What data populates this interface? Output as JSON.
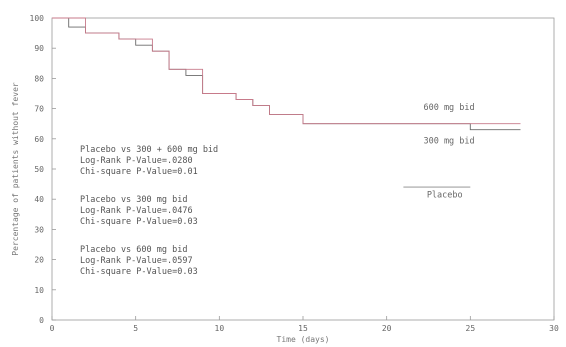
{
  "chart_data": {
    "type": "line",
    "title": "",
    "xlabel": "Time (days)",
    "ylabel": "Percentage of patients without fever",
    "xlim": [
      0,
      30
    ],
    "ylim": [
      0,
      100
    ],
    "x_ticks": [
      "0",
      "5",
      "10",
      "15",
      "20",
      "25",
      "30"
    ],
    "y_ticks": [
      "0",
      "10",
      "20",
      "30",
      "40",
      "50",
      "60",
      "70",
      "80",
      "90",
      "100"
    ],
    "grid": false,
    "series": [
      {
        "name": "600 mg bid",
        "color": "#6a6a6a",
        "x": [
          0,
          1,
          1,
          2,
          2,
          4,
          4,
          5,
          5,
          6,
          6,
          7,
          7,
          8,
          8,
          9,
          9,
          11,
          11,
          12,
          12,
          13,
          13,
          15,
          15,
          25,
          25,
          28
        ],
        "y": [
          100,
          100,
          97,
          97,
          95,
          95,
          93,
          93,
          91,
          91,
          89,
          89,
          83,
          83,
          81,
          81,
          75,
          75,
          73,
          73,
          71,
          71,
          68,
          68,
          65,
          65,
          63,
          63
        ]
      },
      {
        "name": "300 mg bid",
        "color": "#c77a8a",
        "x": [
          0,
          2,
          2,
          4,
          4,
          6,
          6,
          7,
          7,
          9,
          9,
          11,
          11,
          12,
          12,
          13,
          13,
          15,
          15,
          28
        ],
        "y": [
          100,
          100,
          95,
          95,
          93,
          93,
          89,
          89,
          83,
          83,
          75,
          75,
          73,
          73,
          71,
          71,
          68,
          68,
          65,
          65
        ]
      },
      {
        "name": "Placebo",
        "color": "#888888",
        "x": [
          21,
          25
        ],
        "y": [
          44,
          44
        ]
      }
    ],
    "annotations": [
      {
        "lines": [
          "Placebo vs 300 + 600 mg bid",
          "Log-Rank P-Value=.0280",
          "Chi-square P-Value=0.01"
        ]
      },
      {
        "lines": [
          "Placebo vs 300 mg bid",
          "Log-Rank P-Value=.0476",
          "Chi-square P-Value=0.03"
        ]
      },
      {
        "lines": [
          "Placebo vs 600 mg bid",
          "Log-Rank P-Value=.0597",
          "Chi-square P-Value=0.03"
        ]
      }
    ],
    "curve_labels": [
      {
        "text": "600 mg bid",
        "at_x": 22.2,
        "at_y": 69.5
      },
      {
        "text": "300 mg bid",
        "at_x": 22.2,
        "at_y": 58.5
      },
      {
        "text": "Placebo",
        "at_x": 22.4,
        "at_y": 40.5
      }
    ]
  }
}
